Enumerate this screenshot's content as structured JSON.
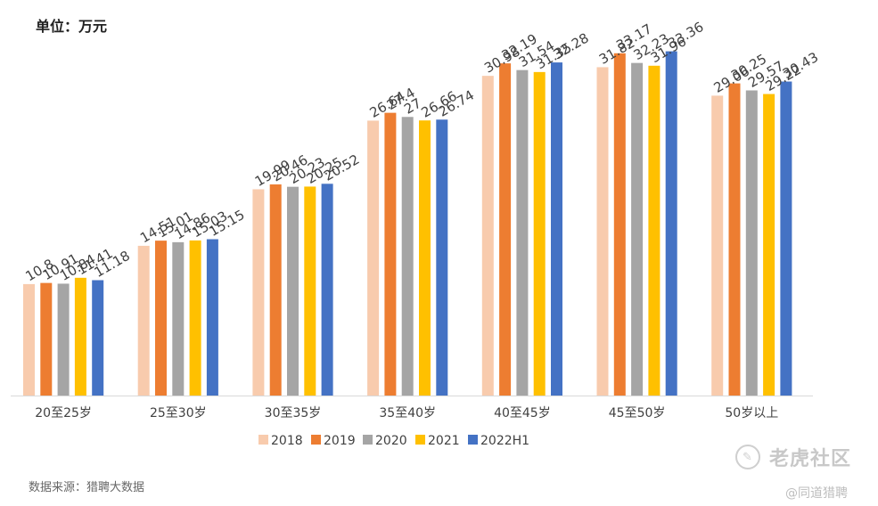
{
  "unit_label": "单位：万元",
  "source_note": "数据来源：猎聘大数据",
  "watermark": {
    "logo_text": "老虎社区",
    "handle": "@同道猎聘"
  },
  "chart_data": {
    "type": "bar",
    "title": "",
    "xlabel": "",
    "ylabel": "",
    "ylim": [
      0,
      36
    ],
    "grid": false,
    "legend_position": "bottom",
    "categories": [
      "20至25岁",
      "25至30岁",
      "30至35岁",
      "35至40岁",
      "40至45岁",
      "45至50岁",
      "50岁以上"
    ],
    "series": [
      {
        "name": "2018",
        "color": "#F8CBAD",
        "values": [
          10.8,
          14.51,
          19.99,
          26.64,
          30.98,
          31.82,
          29.06
        ]
      },
      {
        "name": "2019",
        "color": "#ED7D31",
        "values": [
          10.91,
          15.01,
          20.46,
          27.4,
          32.19,
          33.17,
          30.25
        ]
      },
      {
        "name": "2020",
        "color": "#A5A5A5",
        "values": [
          10.84,
          14.86,
          20.23,
          27,
          31.54,
          32.23,
          29.57
        ]
      },
      {
        "name": "2021",
        "color": "#FFC000",
        "values": [
          11.41,
          15.03,
          20.25,
          26.66,
          31.35,
          31.96,
          29.22
        ]
      },
      {
        "name": "2022H1",
        "color": "#4472C4",
        "values": [
          11.18,
          15.15,
          20.52,
          26.74,
          32.28,
          33.36,
          30.43
        ]
      }
    ]
  }
}
